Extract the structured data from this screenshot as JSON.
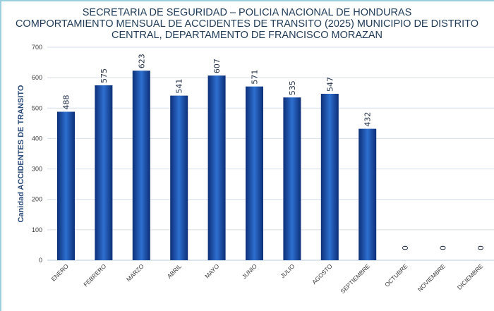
{
  "chart_data": {
    "type": "bar",
    "title_lines": [
      "SECRETARIA DE SEGURIDAD – POLICIA NACIONAL DE HONDURAS",
      "COMPORTAMIENTO MENSUAL DE ACCIDENTES DE TRANSITO (2025) MUNICIPIO DE DISTRITO",
      "CENTRAL, DEPARTAMENTO DE FRANCISCO MORAZAN"
    ],
    "ylabel": "Canidad ACCIDENTES DE TRANSITO",
    "xlabel": "",
    "categories": [
      "ENERO",
      "FEBRERO",
      "MARZO",
      "ABRIL",
      "MAYO",
      "JUNIO",
      "JULIO",
      "AGOSTO",
      "SEPTIEMBRE",
      "OCTUBRE",
      "NOVIEMBRE",
      "DICIEMBRE"
    ],
    "values": [
      488,
      575,
      623,
      541,
      607,
      571,
      535,
      547,
      432,
      0,
      0,
      0
    ],
    "ylim": [
      0,
      700
    ],
    "yticks": [
      0,
      100,
      200,
      300,
      400,
      500,
      600,
      700
    ],
    "grid": true,
    "bar_color": "#1e56b0",
    "bar_color_edge": "#0d2f78"
  }
}
